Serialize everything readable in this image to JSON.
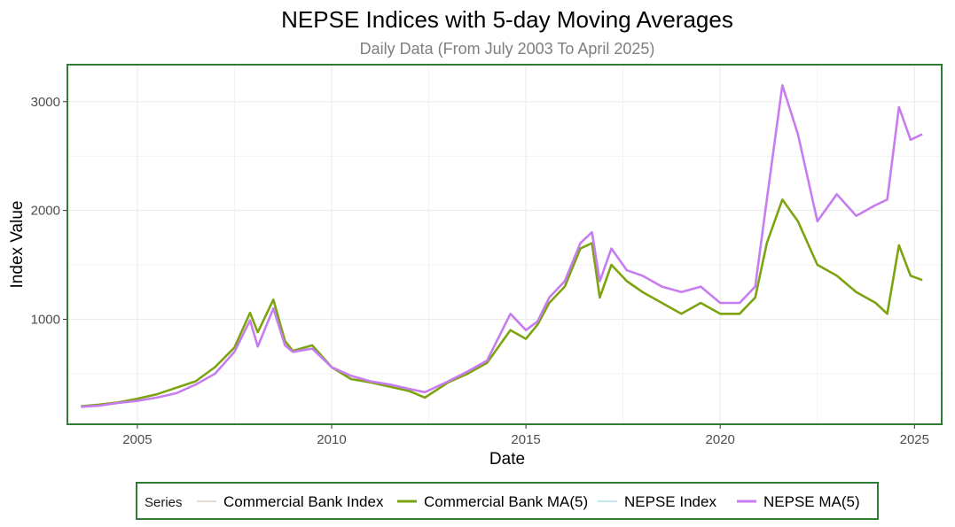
{
  "chart_data": {
    "type": "line",
    "title": "NEPSE Indices with 5-day Moving Averages",
    "subtitle": "Daily Data (From July 2003 To April 2025)",
    "xlabel": "Date",
    "ylabel": "Index Value",
    "xlim": [
      2003.2,
      2025.7
    ],
    "ylim": [
      35,
      3340
    ],
    "x_ticks": [
      2005,
      2010,
      2015,
      2020,
      2025
    ],
    "x_tick_labels": [
      "2005",
      "2010",
      "2015",
      "2020",
      "2025"
    ],
    "y_ticks": [
      1000,
      2000,
      3000
    ],
    "y_tick_labels": [
      "1000",
      "2000",
      "3000"
    ],
    "grid": true,
    "legend": {
      "title": "Series",
      "position": "bottom"
    },
    "colors": {
      "commercial_index": "#c9b8a6",
      "commercial_ma": "#7ca310",
      "nepse_index": "#7fd3e0",
      "nepse_ma": "#c77cf0",
      "panel_border": "#2e7d32",
      "grid": "#ebebeb"
    },
    "series": [
      {
        "name": "Commercial Bank Index",
        "line": "thin",
        "x": [
          2003.55,
          2004.0,
          2004.5,
          2005.0,
          2005.5,
          2006.0,
          2006.5,
          2007.0,
          2007.5,
          2007.9,
          2008.1,
          2008.5,
          2008.8,
          2009.0,
          2009.5,
          2010.0,
          2010.5,
          2011.0,
          2011.5,
          2012.0,
          2012.4,
          2013.0,
          2013.5,
          2014.0,
          2014.6,
          2015.0,
          2015.3,
          2015.6,
          2016.0,
          2016.4,
          2016.7,
          2016.9,
          2017.2,
          2017.6,
          2018.0,
          2018.5,
          2019.0,
          2019.5,
          2020.0,
          2020.5,
          2020.9,
          2021.2,
          2021.6,
          2022.0,
          2022.5,
          2023.0,
          2023.5,
          2024.0,
          2024.3,
          2024.6,
          2024.9,
          2025.2
        ],
        "y": [
          200,
          215,
          235,
          270,
          310,
          370,
          430,
          560,
          740,
          1060,
          880,
          1180,
          800,
          710,
          760,
          560,
          450,
          420,
          380,
          340,
          280,
          420,
          500,
          600,
          900,
          820,
          950,
          1150,
          1300,
          1650,
          1700,
          1200,
          1500,
          1350,
          1250,
          1150,
          1050,
          1150,
          1050,
          1050,
          1200,
          1700,
          2100,
          1900,
          1500,
          1400,
          1250,
          1150,
          1050,
          1680,
          1400,
          1360
        ]
      },
      {
        "name": "Commercial Bank MA(5)",
        "line": "thick",
        "x": [
          2003.55,
          2004.0,
          2004.5,
          2005.0,
          2005.5,
          2006.0,
          2006.5,
          2007.0,
          2007.5,
          2007.9,
          2008.1,
          2008.5,
          2008.8,
          2009.0,
          2009.5,
          2010.0,
          2010.5,
          2011.0,
          2011.5,
          2012.0,
          2012.4,
          2013.0,
          2013.5,
          2014.0,
          2014.6,
          2015.0,
          2015.3,
          2015.6,
          2016.0,
          2016.4,
          2016.7,
          2016.9,
          2017.2,
          2017.6,
          2018.0,
          2018.5,
          2019.0,
          2019.5,
          2020.0,
          2020.5,
          2020.9,
          2021.2,
          2021.6,
          2022.0,
          2022.5,
          2023.0,
          2023.5,
          2024.0,
          2024.3,
          2024.6,
          2024.9,
          2025.2
        ],
        "y": [
          200,
          215,
          235,
          270,
          310,
          370,
          430,
          560,
          740,
          1060,
          880,
          1180,
          800,
          710,
          760,
          560,
          450,
          420,
          380,
          340,
          280,
          420,
          500,
          600,
          900,
          820,
          950,
          1150,
          1300,
          1650,
          1700,
          1200,
          1500,
          1350,
          1250,
          1150,
          1050,
          1150,
          1050,
          1050,
          1200,
          1700,
          2100,
          1900,
          1500,
          1400,
          1250,
          1150,
          1050,
          1680,
          1400,
          1360
        ]
      },
      {
        "name": "NEPSE Index",
        "line": "thin",
        "x": [
          2003.55,
          2004.0,
          2004.5,
          2005.0,
          2005.5,
          2006.0,
          2006.5,
          2007.0,
          2007.5,
          2007.9,
          2008.1,
          2008.5,
          2008.8,
          2009.0,
          2009.5,
          2010.0,
          2010.5,
          2011.0,
          2011.5,
          2012.0,
          2012.4,
          2013.0,
          2013.5,
          2014.0,
          2014.6,
          2015.0,
          2015.3,
          2015.6,
          2016.0,
          2016.4,
          2016.7,
          2016.9,
          2017.2,
          2017.6,
          2018.0,
          2018.5,
          2019.0,
          2019.5,
          2020.0,
          2020.5,
          2020.9,
          2021.2,
          2021.6,
          2022.0,
          2022.5,
          2023.0,
          2023.5,
          2024.0,
          2024.3,
          2024.6,
          2024.9,
          2025.2
        ],
        "y": [
          195,
          205,
          230,
          250,
          280,
          320,
          400,
          500,
          700,
          990,
          750,
          1100,
          760,
          700,
          730,
          560,
          480,
          430,
          400,
          360,
          330,
          430,
          520,
          620,
          1050,
          900,
          980,
          1200,
          1350,
          1700,
          1800,
          1350,
          1650,
          1450,
          1400,
          1300,
          1250,
          1300,
          1150,
          1150,
          1300,
          2100,
          3150,
          2700,
          1900,
          2150,
          1950,
          2050,
          2100,
          2950,
          2650,
          2700
        ]
      },
      {
        "name": "NEPSE MA(5)",
        "line": "thick",
        "x": [
          2003.55,
          2004.0,
          2004.5,
          2005.0,
          2005.5,
          2006.0,
          2006.5,
          2007.0,
          2007.5,
          2007.9,
          2008.1,
          2008.5,
          2008.8,
          2009.0,
          2009.5,
          2010.0,
          2010.5,
          2011.0,
          2011.5,
          2012.0,
          2012.4,
          2013.0,
          2013.5,
          2014.0,
          2014.6,
          2015.0,
          2015.3,
          2015.6,
          2016.0,
          2016.4,
          2016.7,
          2016.9,
          2017.2,
          2017.6,
          2018.0,
          2018.5,
          2019.0,
          2019.5,
          2020.0,
          2020.5,
          2020.9,
          2021.2,
          2021.6,
          2022.0,
          2022.5,
          2023.0,
          2023.5,
          2024.0,
          2024.3,
          2024.6,
          2024.9,
          2025.2
        ],
        "y": [
          195,
          205,
          230,
          250,
          280,
          320,
          400,
          500,
          700,
          990,
          750,
          1100,
          760,
          700,
          730,
          560,
          480,
          430,
          400,
          360,
          330,
          430,
          520,
          620,
          1050,
          900,
          980,
          1200,
          1350,
          1700,
          1800,
          1350,
          1650,
          1450,
          1400,
          1300,
          1250,
          1300,
          1150,
          1150,
          1300,
          2100,
          3150,
          2700,
          1900,
          2150,
          1950,
          2050,
          2100,
          2950,
          2650,
          2700
        ]
      }
    ]
  }
}
